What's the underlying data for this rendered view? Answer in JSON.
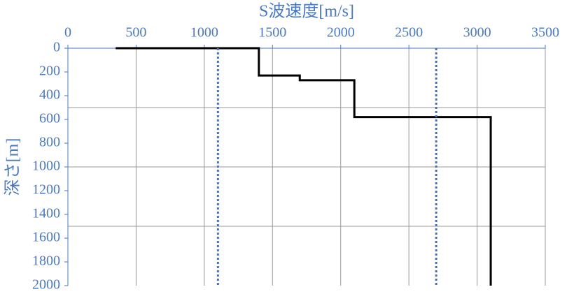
{
  "chart_data": {
    "type": "line",
    "xlabel": "S波速度[m/s]",
    "ylabel": "深さ[m]",
    "xlim": [
      0,
      3500
    ],
    "xticks": [
      0,
      500,
      1000,
      1500,
      2000,
      2500,
      3000,
      3500
    ],
    "ylim": [
      0,
      2000
    ],
    "yticks": [
      0,
      200,
      400,
      600,
      800,
      1000,
      1200,
      1400,
      1600,
      1800,
      2000
    ],
    "y_inverted": true,
    "x_axis_position": "top",
    "grid": true,
    "ygrid": [
      500,
      1000,
      1500
    ],
    "series": [
      {
        "color": "#000000",
        "style": "solid",
        "x": [
          350,
          1400,
          1400,
          1700,
          1700,
          2100,
          2100,
          3100,
          3100
        ],
        "y": [
          0,
          0,
          230,
          230,
          270,
          270,
          580,
          580,
          2000
        ]
      },
      {
        "color": "#4472c4",
        "style": "dotted",
        "x": [
          1100,
          1100
        ],
        "y": [
          0,
          2000
        ]
      },
      {
        "color": "#4472c4",
        "style": "dotted",
        "x": [
          2700,
          2700
        ],
        "y": [
          0,
          2000
        ]
      }
    ]
  }
}
